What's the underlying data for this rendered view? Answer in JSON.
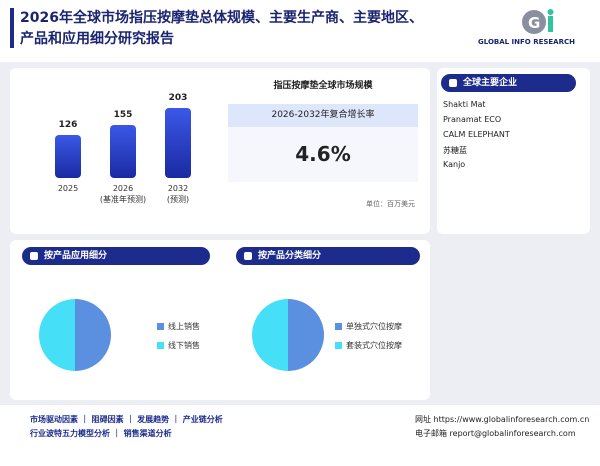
{
  "header": {
    "title": "2026年全球市场指压按摩垫总体规模、主要生产商、主要地区、产品和应用细分研究报告",
    "logo": "GLOBAL INFO RESEARCH"
  },
  "chart_data": [
    {
      "type": "bar",
      "title": "指压按摩垫全球市场规模",
      "categories": [
        "2025",
        "2026\n(基准年预测)",
        "2032\n(预测)"
      ],
      "values": [
        126,
        155,
        203
      ],
      "cagr_title": "2026-2032年复合增长率",
      "cagr": "4.6%",
      "unit": "单位：百万美元"
    },
    {
      "type": "pie",
      "title": "按产品应用细分",
      "categories": [
        "线上销售",
        "线下销售"
      ],
      "values": [
        50,
        50
      ],
      "colors": [
        "#5b8fe0",
        "#45e0f7"
      ]
    },
    {
      "type": "pie",
      "title": "按产品分类细分",
      "categories": [
        "单独式穴位按摩",
        "套装式穴位按摩"
      ],
      "values": [
        50,
        50
      ],
      "colors": [
        "#5b8fe0",
        "#45e0f7"
      ]
    }
  ],
  "companies": {
    "title": "全球主要企业",
    "items": [
      "Shakti Mat",
      "Pranamat ECO",
      "CALM ELEPHANT",
      "苏糖蓝",
      "Kanjo"
    ]
  },
  "footer": {
    "links": [
      "市场驱动因素 ｜ 阻碍因素 ｜ 发展趋势 ｜ 产业链分析",
      "行业波特五力模型分析 ｜ 销售渠道分析"
    ],
    "website": "网址 https://www.globalinforesearch.com.cn",
    "email": "电子邮箱 report@globalinforesearch.com"
  }
}
